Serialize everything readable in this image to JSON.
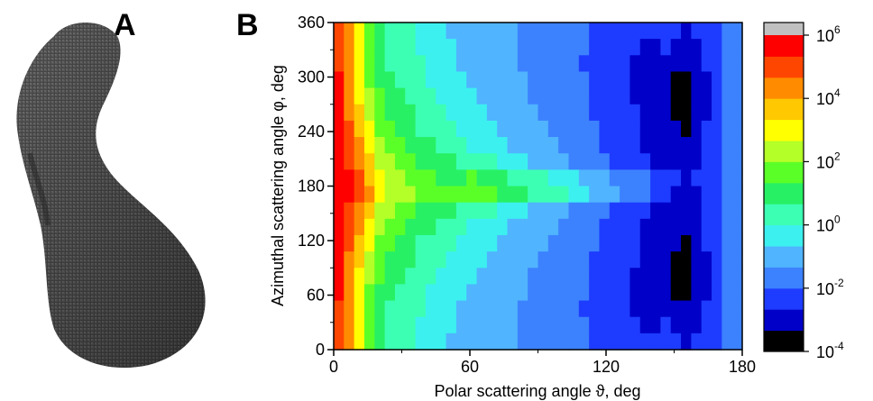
{
  "panels": {
    "a_label": "A",
    "b_label": "B"
  },
  "chart_data": {
    "type": "heatmap",
    "title": "",
    "xlabel": "Polar scattering angle ϑ, deg",
    "ylabel": "Azimuthal scattering angle φ, deg",
    "xlim": [
      0,
      180
    ],
    "ylim": [
      0,
      360
    ],
    "xticks": [
      "0",
      "60",
      "120",
      "180"
    ],
    "yticks": [
      "0",
      "60",
      "120",
      "180",
      "240",
      "300",
      "360"
    ],
    "colorbar": {
      "scale": "log",
      "range": [
        0.0001,
        1000000
      ],
      "ticks": [
        {
          "base": "10",
          "exp": "6"
        },
        {
          "base": "10",
          "exp": "4"
        },
        {
          "base": "10",
          "exp": "2"
        },
        {
          "base": "10",
          "exp": "0"
        },
        {
          "base": "10",
          "exp": "-2"
        },
        {
          "base": "10",
          "exp": "-4"
        }
      ],
      "colors": [
        "#000000",
        "#0000c8",
        "#1e3cff",
        "#3c82ff",
        "#50b4ff",
        "#3cf0f0",
        "#3cffb4",
        "#28f064",
        "#5aff28",
        "#b4ff28",
        "#ffff00",
        "#ffc800",
        "#ff8c00",
        "#ff4600",
        "#ff0000"
      ],
      "over_color": "#c0c0c0"
    },
    "description_grid": {
      "theta_step": 4.5,
      "phi_step": 9,
      "note": "log10 intensity values sampled on theta (cols) x phi (rows)"
    },
    "values_log10": [
      [
        5.3,
        4.2,
        3.0,
        1.6,
        0.8,
        0.4,
        0.3,
        0.1,
        -0.2,
        -0.4,
        -0.5,
        -0.7,
        -0.8,
        -0.9,
        -1.0,
        -1.1,
        -1.2,
        -1.3,
        -1.4,
        -1.5,
        -1.6,
        -1.7,
        -1.8,
        -1.9,
        -2.0,
        -2.1,
        -2.2,
        -2.3,
        -2.4,
        -2.5,
        -2.6,
        -2.5,
        -2.4,
        -2.6,
        -2.8,
        -2.6,
        -2.3,
        -2.1,
        -1.9,
        -1.8
      ],
      [
        5.1,
        4.0,
        2.8,
        1.5,
        0.9,
        0.5,
        0.3,
        0.1,
        -0.1,
        -0.3,
        -0.5,
        -0.6,
        -0.7,
        -0.9,
        -1.0,
        -1.1,
        -1.2,
        -1.3,
        -1.4,
        -1.5,
        -1.6,
        -1.7,
        -1.8,
        -1.9,
        -2.0,
        -2.1,
        -2.3,
        -2.4,
        -2.5,
        -2.6,
        -2.8,
        -2.7,
        -2.6,
        -2.8,
        -3.0,
        -2.8,
        -2.5,
        -2.2,
        -1.9,
        -1.8
      ],
      [
        5.2,
        4.1,
        2.9,
        1.7,
        1.0,
        0.6,
        0.4,
        0.2,
        0.0,
        -0.2,
        -0.4,
        -0.5,
        -0.7,
        -0.8,
        -0.9,
        -1.0,
        -1.1,
        -1.2,
        -1.4,
        -1.5,
        -1.6,
        -1.7,
        -1.8,
        -2.0,
        -2.1,
        -2.2,
        -2.3,
        -2.4,
        -2.6,
        -2.7,
        -2.9,
        -3.0,
        -2.9,
        -3.1,
        -3.3,
        -3.0,
        -2.6,
        -2.2,
        -1.9,
        -1.8
      ],
      [
        5.4,
        4.3,
        3.1,
        1.9,
        1.2,
        0.8,
        0.5,
        0.3,
        0.1,
        -0.1,
        -0.3,
        -0.4,
        -0.6,
        -0.7,
        -0.8,
        -0.9,
        -1.1,
        -1.2,
        -1.3,
        -1.4,
        -1.5,
        -1.7,
        -1.8,
        -1.9,
        -2.0,
        -2.1,
        -2.3,
        -2.4,
        -2.5,
        -2.7,
        -2.9,
        -3.1,
        -3.2,
        -3.4,
        -3.6,
        -3.2,
        -2.7,
        -2.3,
        -1.9,
        -1.8
      ],
      [
        5.5,
        4.4,
        3.3,
        2.1,
        1.4,
        1.0,
        0.7,
        0.5,
        0.2,
        0.0,
        -0.2,
        -0.3,
        -0.5,
        -0.6,
        -0.7,
        -0.9,
        -1.0,
        -1.1,
        -1.2,
        -1.4,
        -1.5,
        -1.6,
        -1.7,
        -1.9,
        -2.0,
        -2.1,
        -2.2,
        -2.4,
        -2.5,
        -2.7,
        -2.9,
        -3.1,
        -3.3,
        -3.5,
        -3.7,
        -3.3,
        -2.8,
        -2.3,
        -1.9,
        -1.8
      ],
      [
        5.6,
        4.6,
        3.5,
        2.4,
        1.6,
        1.2,
        0.9,
        0.7,
        0.4,
        0.2,
        0.0,
        -0.1,
        -0.3,
        -0.4,
        -0.6,
        -0.7,
        -0.9,
        -1.0,
        -1.1,
        -1.3,
        -1.4,
        -1.5,
        -1.7,
        -1.8,
        -1.9,
        -2.1,
        -2.2,
        -2.3,
        -2.5,
        -2.6,
        -2.8,
        -3.0,
        -3.2,
        -3.4,
        -3.6,
        -3.2,
        -2.7,
        -2.3,
        -1.9,
        -1.8
      ],
      [
        5.7,
        4.8,
        3.8,
        2.7,
        1.9,
        1.5,
        1.2,
        0.9,
        0.6,
        0.4,
        0.2,
        0.1,
        -0.1,
        -0.3,
        -0.4,
        -0.6,
        -0.7,
        -0.9,
        -1.0,
        -1.2,
        -1.3,
        -1.4,
        -1.6,
        -1.7,
        -1.9,
        -2.0,
        -2.1,
        -2.3,
        -2.4,
        -2.6,
        -2.8,
        -2.9,
        -3.1,
        -3.3,
        -3.4,
        -3.0,
        -2.6,
        -2.2,
        -1.9,
        -1.8
      ],
      [
        5.8,
        5.0,
        4.1,
        3.0,
        2.2,
        1.8,
        1.5,
        1.2,
        0.9,
        0.7,
        0.5,
        0.3,
        0.1,
        -0.1,
        -0.2,
        -0.4,
        -0.6,
        -0.7,
        -0.9,
        -1.0,
        -1.2,
        -1.3,
        -1.5,
        -1.6,
        -1.8,
        -1.9,
        -2.1,
        -2.2,
        -2.4,
        -2.5,
        -2.7,
        -2.8,
        -3.0,
        -3.1,
        -3.2,
        -2.9,
        -2.5,
        -2.2,
        -1.9,
        -1.8
      ],
      [
        5.9,
        5.2,
        4.4,
        3.4,
        2.6,
        2.1,
        1.8,
        1.6,
        1.3,
        1.1,
        0.9,
        0.8,
        0.6,
        0.4,
        0.2,
        0.0,
        -0.2,
        -0.4,
        -0.6,
        -0.8,
        -1.0,
        -1.1,
        -1.3,
        -1.5,
        -1.6,
        -1.8,
        -2.0,
        -2.1,
        -2.3,
        -2.4,
        -2.6,
        -2.7,
        -2.9,
        -3.0,
        -3.1,
        -2.8,
        -2.5,
        -2.2,
        -1.9,
        -1.8
      ],
      [
        6.0,
        5.4,
        4.7,
        3.8,
        3.0,
        2.5,
        2.1,
        1.9,
        1.6,
        1.4,
        1.2,
        1.1,
        1.3,
        1.4,
        1.3,
        1.1,
        0.9,
        0.6,
        0.4,
        0.2,
        0.0,
        -0.2,
        -0.4,
        -0.6,
        -0.8,
        -1.0,
        -1.2,
        -1.4,
        -1.6,
        -1.8,
        -2.0,
        -2.2,
        -2.4,
        -2.6,
        -2.7,
        -2.6,
        -2.4,
        -2.2,
        -1.9,
        -1.8
      ],
      [
        6.0,
        5.5,
        4.8,
        4.0,
        3.2,
        2.6,
        2.2,
        2.0,
        1.8,
        1.6,
        1.5,
        1.4,
        1.6,
        1.7,
        1.6,
        1.4,
        1.2,
        1.0,
        0.8,
        0.6,
        0.4,
        0.2,
        0.0,
        -0.2,
        -0.5,
        -0.7,
        -0.9,
        -1.2,
        -1.4,
        -1.7,
        -2.0,
        -2.3,
        -2.6,
        -2.9,
        -3.1,
        -2.9,
        -2.6,
        -2.2,
        -1.9,
        -1.8
      ],
      [
        5.9,
        5.2,
        4.4,
        3.4,
        2.6,
        2.1,
        1.8,
        1.6,
        1.3,
        1.1,
        0.9,
        0.8,
        0.6,
        0.4,
        0.2,
        0.0,
        -0.2,
        -0.4,
        -0.6,
        -0.8,
        -1.0,
        -1.1,
        -1.3,
        -1.5,
        -1.6,
        -1.8,
        -2.0,
        -2.1,
        -2.3,
        -2.4,
        -2.6,
        -2.7,
        -2.9,
        -3.0,
        -3.1,
        -2.8,
        -2.5,
        -2.2,
        -1.9,
        -1.8
      ],
      [
        5.8,
        5.0,
        4.1,
        3.0,
        2.2,
        1.8,
        1.5,
        1.2,
        0.9,
        0.7,
        0.5,
        0.3,
        0.1,
        -0.1,
        -0.2,
        -0.4,
        -0.6,
        -0.7,
        -0.9,
        -1.0,
        -1.2,
        -1.3,
        -1.5,
        -1.6,
        -1.8,
        -1.9,
        -2.1,
        -2.2,
        -2.4,
        -2.5,
        -2.7,
        -2.8,
        -3.0,
        -3.1,
        -3.2,
        -2.9,
        -2.5,
        -2.2,
        -1.9,
        -1.8
      ],
      [
        5.7,
        4.8,
        3.8,
        2.7,
        1.9,
        1.5,
        1.2,
        0.9,
        0.6,
        0.4,
        0.2,
        0.1,
        -0.1,
        -0.3,
        -0.4,
        -0.6,
        -0.7,
        -0.9,
        -1.0,
        -1.2,
        -1.3,
        -1.4,
        -1.6,
        -1.7,
        -1.9,
        -2.0,
        -2.1,
        -2.3,
        -2.4,
        -2.6,
        -2.8,
        -2.9,
        -3.1,
        -3.3,
        -3.4,
        -3.0,
        -2.6,
        -2.2,
        -1.9,
        -1.8
      ],
      [
        5.6,
        4.6,
        3.5,
        2.4,
        1.6,
        1.2,
        0.9,
        0.7,
        0.4,
        0.2,
        0.0,
        -0.1,
        -0.3,
        -0.4,
        -0.6,
        -0.7,
        -0.9,
        -1.0,
        -1.1,
        -1.3,
        -1.4,
        -1.5,
        -1.7,
        -1.8,
        -1.9,
        -2.1,
        -2.2,
        -2.3,
        -2.5,
        -2.6,
        -2.8,
        -3.0,
        -3.2,
        -3.4,
        -3.6,
        -3.2,
        -2.7,
        -2.3,
        -1.9,
        -1.8
      ],
      [
        5.5,
        4.4,
        3.3,
        2.1,
        1.4,
        1.0,
        0.7,
        0.5,
        0.2,
        0.0,
        -0.2,
        -0.3,
        -0.5,
        -0.6,
        -0.7,
        -0.9,
        -1.0,
        -1.1,
        -1.2,
        -1.4,
        -1.5,
        -1.6,
        -1.7,
        -1.9,
        -2.0,
        -2.1,
        -2.2,
        -2.4,
        -2.5,
        -2.7,
        -2.9,
        -3.1,
        -3.3,
        -3.5,
        -3.7,
        -3.3,
        -2.8,
        -2.3,
        -1.9,
        -1.8
      ],
      [
        5.4,
        4.3,
        3.1,
        1.9,
        1.2,
        0.8,
        0.5,
        0.3,
        0.1,
        -0.1,
        -0.3,
        -0.4,
        -0.6,
        -0.7,
        -0.8,
        -0.9,
        -1.1,
        -1.2,
        -1.3,
        -1.4,
        -1.5,
        -1.7,
        -1.8,
        -1.9,
        -2.0,
        -2.1,
        -2.3,
        -2.4,
        -2.5,
        -2.7,
        -2.9,
        -3.1,
        -3.2,
        -3.4,
        -3.6,
        -3.2,
        -2.7,
        -2.3,
        -1.9,
        -1.8
      ],
      [
        5.2,
        4.1,
        2.9,
        1.7,
        1.0,
        0.6,
        0.4,
        0.2,
        0.0,
        -0.2,
        -0.4,
        -0.5,
        -0.7,
        -0.8,
        -0.9,
        -1.0,
        -1.1,
        -1.2,
        -1.4,
        -1.5,
        -1.6,
        -1.7,
        -1.8,
        -2.0,
        -2.1,
        -2.2,
        -2.3,
        -2.4,
        -2.6,
        -2.7,
        -2.9,
        -3.0,
        -2.9,
        -3.1,
        -3.3,
        -3.0,
        -2.6,
        -2.2,
        -1.9,
        -1.8
      ],
      [
        5.1,
        4.0,
        2.8,
        1.5,
        0.9,
        0.5,
        0.3,
        0.1,
        -0.1,
        -0.3,
        -0.5,
        -0.6,
        -0.7,
        -0.9,
        -1.0,
        -1.1,
        -1.2,
        -1.3,
        -1.4,
        -1.5,
        -1.6,
        -1.7,
        -1.8,
        -1.9,
        -2.0,
        -2.1,
        -2.3,
        -2.4,
        -2.5,
        -2.6,
        -2.8,
        -2.7,
        -2.6,
        -2.8,
        -3.0,
        -2.8,
        -2.5,
        -2.2,
        -1.9,
        -1.8
      ],
      [
        5.3,
        4.2,
        3.0,
        1.6,
        0.8,
        0.4,
        0.3,
        0.1,
        -0.2,
        -0.4,
        -0.5,
        -0.7,
        -0.8,
        -0.9,
        -1.0,
        -1.1,
        -1.2,
        -1.3,
        -1.4,
        -1.5,
        -1.6,
        -1.7,
        -1.8,
        -1.9,
        -2.0,
        -2.1,
        -2.2,
        -2.3,
        -2.4,
        -2.5,
        -2.6,
        -2.5,
        -2.4,
        -2.6,
        -2.8,
        -2.6,
        -2.3,
        -2.1,
        -1.9,
        -1.8
      ]
    ]
  }
}
